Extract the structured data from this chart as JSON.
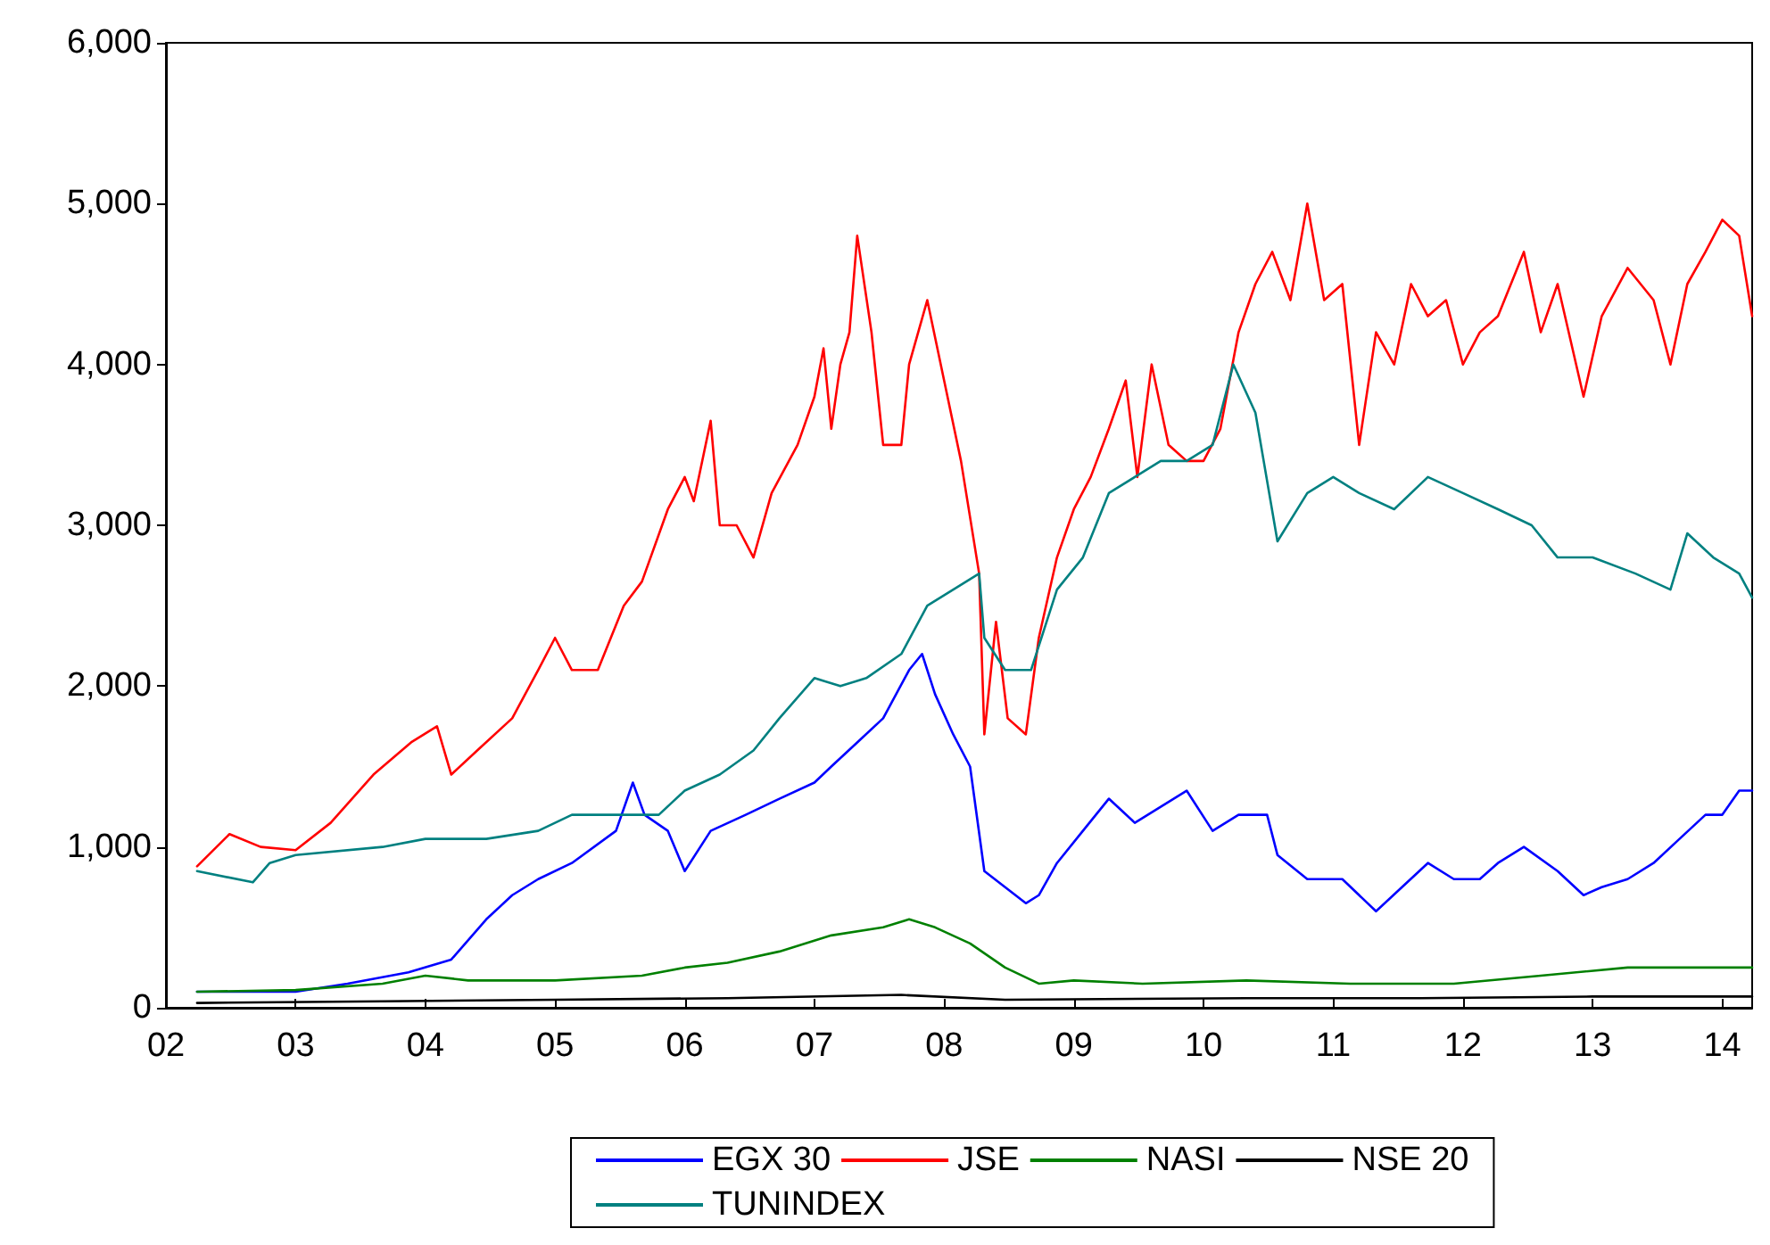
{
  "chart_data": {
    "type": "line",
    "xlim": [
      2002,
      2014.23
    ],
    "xticks": [
      {
        "value": 2002,
        "label": "02"
      },
      {
        "value": 2003,
        "label": "03"
      },
      {
        "value": 2004,
        "label": "04"
      },
      {
        "value": 2005,
        "label": "05"
      },
      {
        "value": 2006,
        "label": "06"
      },
      {
        "value": 2007,
        "label": "07"
      },
      {
        "value": 2008,
        "label": "08"
      },
      {
        "value": 2009,
        "label": "09"
      },
      {
        "value": 2010,
        "label": "10"
      },
      {
        "value": 2011,
        "label": "11"
      },
      {
        "value": 2012,
        "label": "12"
      },
      {
        "value": 2013,
        "label": "13"
      },
      {
        "value": 2014,
        "label": "14"
      }
    ],
    "ylim": [
      0,
      6000
    ],
    "yticks": [
      {
        "value": 0,
        "label": "0"
      },
      {
        "value": 1000,
        "label": "1,000"
      },
      {
        "value": 2000,
        "label": "2,000"
      },
      {
        "value": 3000,
        "label": "3,000"
      },
      {
        "value": 4000,
        "label": "4,000"
      },
      {
        "value": 5000,
        "label": "5,000"
      },
      {
        "value": 6000,
        "label": "6,000"
      }
    ],
    "grid": false,
    "legend": "bottom",
    "marker": "none",
    "line_style": "solid",
    "series": [
      {
        "name": "EGX 30",
        "color": "#0000ff",
        "x": [
          2002.24,
          2003,
          2003.4,
          2003.87,
          2004.2,
          2004.47,
          2004.67,
          2004.87,
          2005.13,
          2005.47,
          2005.6,
          2005.69,
          2005.87,
          2006,
          2006.2,
          2006.47,
          2006.73,
          2007,
          2007.13,
          2007.33,
          2007.53,
          2007.73,
          2007.83,
          2007.93,
          2008.07,
          2008.2,
          2008.31,
          2008.47,
          2008.63,
          2008.73,
          2008.87,
          2009.07,
          2009.27,
          2009.47,
          2009.67,
          2009.87,
          2010.07,
          2010.27,
          2010.49,
          2010.57,
          2010.8,
          2011.07,
          2011.33,
          2011.53,
          2011.73,
          2011.93,
          2012.13,
          2012.27,
          2012.47,
          2012.73,
          2012.93,
          2013.07,
          2013.27,
          2013.47,
          2013.67,
          2013.87,
          2014,
          2014.13,
          2014.23
        ],
        "values": [
          100,
          100,
          150,
          220,
          300,
          550,
          700,
          800,
          900,
          1100,
          1400,
          1200,
          1100,
          850,
          1100,
          1200,
          1300,
          1400,
          1500,
          1650,
          1800,
          2100,
          2200,
          1950,
          1700,
          1500,
          850,
          750,
          650,
          700,
          900,
          1100,
          1300,
          1150,
          1250,
          1350,
          1100,
          1200,
          1200,
          950,
          800,
          800,
          600,
          750,
          900,
          800,
          800,
          900,
          1000,
          850,
          700,
          750,
          800,
          900,
          1050,
          1200,
          1200,
          1350,
          1350
        ]
      },
      {
        "name": "JSE",
        "color": "#ff0000",
        "x": [
          2002.24,
          2002.49,
          2002.73,
          2003,
          2003.27,
          2003.6,
          2003.89,
          2004.09,
          2004.2,
          2004.4,
          2004.67,
          2004.87,
          2005,
          2005.13,
          2005.33,
          2005.53,
          2005.67,
          2005.87,
          2006,
          2006.07,
          2006.2,
          2006.27,
          2006.4,
          2006.53,
          2006.67,
          2006.87,
          2007,
          2007.07,
          2007.13,
          2007.2,
          2007.27,
          2007.33,
          2007.44,
          2007.53,
          2007.67,
          2007.73,
          2007.87,
          2008,
          2008.13,
          2008.27,
          2008.31,
          2008.4,
          2008.49,
          2008.63,
          2008.73,
          2008.87,
          2009,
          2009.13,
          2009.27,
          2009.4,
          2009.49,
          2009.6,
          2009.73,
          2009.87,
          2010,
          2010.13,
          2010.27,
          2010.4,
          2010.53,
          2010.67,
          2010.8,
          2010.93,
          2011.07,
          2011.2,
          2011.33,
          2011.47,
          2011.6,
          2011.73,
          2011.87,
          2012,
          2012.13,
          2012.27,
          2012.47,
          2012.6,
          2012.73,
          2012.93,
          2013.07,
          2013.27,
          2013.47,
          2013.6,
          2013.73,
          2013.87,
          2014,
          2014.13,
          2014.23
        ],
        "values": [
          880,
          1080,
          1000,
          980,
          1150,
          1450,
          1650,
          1750,
          1450,
          1600,
          1800,
          2100,
          2300,
          2100,
          2100,
          2500,
          2650,
          3100,
          3300,
          3150,
          3650,
          3000,
          3000,
          2800,
          3200,
          3500,
          3800,
          4100,
          3600,
          4000,
          4200,
          4800,
          4200,
          3500,
          3500,
          4000,
          4400,
          3900,
          3400,
          2700,
          1700,
          2400,
          1800,
          1700,
          2300,
          2800,
          3100,
          3300,
          3600,
          3900,
          3300,
          4000,
          3500,
          3400,
          3400,
          3600,
          4200,
          4500,
          4700,
          4400,
          5000,
          4400,
          4500,
          3500,
          4200,
          4000,
          4500,
          4300,
          4400,
          4000,
          4200,
          4300,
          4700,
          4200,
          4500,
          3800,
          4300,
          4600,
          4400,
          4000,
          4500,
          4700,
          4900,
          4800,
          4300
        ]
      },
      {
        "name": "NASI",
        "color": "#008000",
        "x": [
          2002.24,
          2003,
          2003.67,
          2004,
          2004.33,
          2005,
          2005.67,
          2006,
          2006.33,
          2006.73,
          2007.13,
          2007.53,
          2007.73,
          2007.93,
          2008.2,
          2008.47,
          2008.73,
          2009,
          2009.53,
          2010.33,
          2011.13,
          2011.93,
          2012.6,
          2013.27,
          2013.8,
          2014.23
        ],
        "values": [
          100,
          110,
          150,
          200,
          170,
          170,
          200,
          250,
          280,
          350,
          450,
          500,
          550,
          500,
          400,
          250,
          150,
          170,
          150,
          170,
          150,
          150,
          200,
          250,
          250,
          250
        ]
      },
      {
        "name": "NSE 20",
        "color": "#000000",
        "x": [
          2002.24,
          2003.67,
          2005,
          2006.33,
          2007.67,
          2008.47,
          2010.33,
          2011.67,
          2013,
          2014.23
        ],
        "values": [
          30,
          40,
          50,
          60,
          80,
          50,
          60,
          60,
          70,
          70
        ]
      },
      {
        "name": "TUNINDEX",
        "color": "#008080",
        "x": [
          2002.24,
          2002.67,
          2002.8,
          2003,
          2003.67,
          2004,
          2004.47,
          2004.87,
          2005.13,
          2005.53,
          2005.8,
          2006,
          2006.27,
          2006.53,
          2006.73,
          2007,
          2007.2,
          2007.4,
          2007.67,
          2007.87,
          2008.07,
          2008.27,
          2008.31,
          2008.47,
          2008.67,
          2008.87,
          2009.07,
          2009.27,
          2009.47,
          2009.67,
          2009.87,
          2010.07,
          2010.23,
          2010.4,
          2010.57,
          2010.8,
          2011,
          2011.2,
          2011.47,
          2011.73,
          2012,
          2012.27,
          2012.53,
          2012.73,
          2013,
          2013.33,
          2013.6,
          2013.73,
          2013.93,
          2014.13,
          2014.23
        ],
        "values": [
          850,
          780,
          900,
          950,
          1000,
          1050,
          1050,
          1100,
          1200,
          1200,
          1200,
          1350,
          1450,
          1600,
          1800,
          2050,
          2000,
          2050,
          2200,
          2500,
          2600,
          2700,
          2300,
          2100,
          2100,
          2600,
          2800,
          3200,
          3300,
          3400,
          3400,
          3500,
          4000,
          3700,
          2900,
          3200,
          3300,
          3200,
          3100,
          3300,
          3200,
          3100,
          3000,
          2800,
          2800,
          2700,
          2600,
          2950,
          2800,
          2700,
          2550
        ]
      }
    ]
  }
}
